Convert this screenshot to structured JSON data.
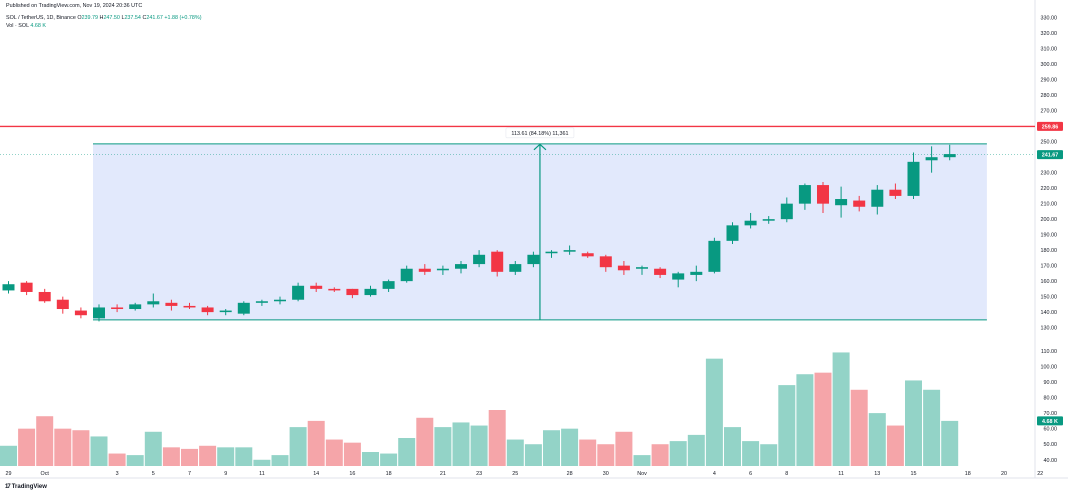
{
  "published": "Published on TradingView.com, Nov 19, 2024 20:36 UTC",
  "legend": {
    "symbol": "SOL / TetherUS, 1D, Binance",
    "o_label": "O",
    "o_value": "239.79",
    "h_label": "H",
    "h_value": "247.50",
    "l_label": "L",
    "l_value": "237.54",
    "c_label": "C",
    "c_value": "241.67",
    "change": "+1.88 (+0.78%)",
    "vol_label": "Vol · SOL",
    "vol_value": "4.68 K"
  },
  "brand": {
    "logo": "17",
    "name": "TradingView"
  },
  "colors": {
    "up": "#089981",
    "down": "#f23645",
    "vol_up": "#93d3c7",
    "vol_down": "#f5a5a9",
    "range_fill": "#dde5fb",
    "range_line": "#089981",
    "hline": "#f23645"
  },
  "chart_data": {
    "type": "candlestick",
    "title": "SOL / TetherUS, 1D, Binance",
    "price_axis": {
      "ticks": [
        130,
        140,
        150,
        160,
        170,
        180,
        190,
        200,
        210,
        220,
        230,
        240,
        250,
        260,
        270,
        280,
        290,
        300,
        310,
        320,
        330
      ],
      "range": [
        122,
        335
      ]
    },
    "volume_axis": {
      "ticks": [
        40,
        50,
        60,
        70,
        80,
        90,
        100,
        110
      ],
      "range": [
        36,
        117
      ]
    },
    "x_ticks": [
      {
        "i": 0,
        "label": "29"
      },
      {
        "i": 2,
        "label": "Oct"
      },
      {
        "i": 6,
        "label": "3"
      },
      {
        "i": 8,
        "label": "5"
      },
      {
        "i": 10,
        "label": "7"
      },
      {
        "i": 12,
        "label": "9"
      },
      {
        "i": 14,
        "label": "11"
      },
      {
        "i": 17,
        "label": "14"
      },
      {
        "i": 19,
        "label": "16"
      },
      {
        "i": 21,
        "label": "18"
      },
      {
        "i": 24,
        "label": "21"
      },
      {
        "i": 26,
        "label": "23"
      },
      {
        "i": 28,
        "label": "25"
      },
      {
        "i": 31,
        "label": "28"
      },
      {
        "i": 33,
        "label": "30"
      },
      {
        "i": 35,
        "label": "Nov"
      },
      {
        "i": 39,
        "label": "4"
      },
      {
        "i": 41,
        "label": "6"
      },
      {
        "i": 43,
        "label": "8"
      },
      {
        "i": 46,
        "label": "11"
      },
      {
        "i": 48,
        "label": "13"
      },
      {
        "i": 50,
        "label": "15"
      },
      {
        "i": 53,
        "label": "18"
      },
      {
        "i": 55,
        "label": "20"
      },
      {
        "i": 57,
        "label": "22"
      }
    ],
    "candles": [
      {
        "o": 154,
        "h": 160,
        "l": 152,
        "c": 158,
        "v": 49
      },
      {
        "o": 159,
        "h": 160,
        "l": 151,
        "c": 153,
        "v": 60
      },
      {
        "o": 153,
        "h": 155,
        "l": 146,
        "c": 147,
        "v": 68
      },
      {
        "o": 148,
        "h": 150,
        "l": 139,
        "c": 142,
        "v": 60
      },
      {
        "o": 141,
        "h": 143,
        "l": 136,
        "c": 138,
        "v": 59
      },
      {
        "o": 136,
        "h": 145,
        "l": 134,
        "c": 143,
        "v": 55
      },
      {
        "o": 143,
        "h": 145,
        "l": 140,
        "c": 142,
        "v": 44
      },
      {
        "o": 142,
        "h": 146,
        "l": 141,
        "c": 145,
        "v": 43
      },
      {
        "o": 145,
        "h": 152,
        "l": 143,
        "c": 147,
        "v": 58
      },
      {
        "o": 146,
        "h": 148,
        "l": 141,
        "c": 144,
        "v": 48
      },
      {
        "o": 144,
        "h": 146,
        "l": 142,
        "c": 143,
        "v": 47
      },
      {
        "o": 143,
        "h": 144,
        "l": 138,
        "c": 140,
        "v": 49
      },
      {
        "o": 140,
        "h": 142,
        "l": 138,
        "c": 141,
        "v": 48
      },
      {
        "o": 139,
        "h": 147,
        "l": 138,
        "c": 146,
        "v": 48
      },
      {
        "o": 146,
        "h": 148,
        "l": 144,
        "c": 147,
        "v": 40
      },
      {
        "o": 147,
        "h": 150,
        "l": 145,
        "c": 148,
        "v": 43
      },
      {
        "o": 148,
        "h": 159,
        "l": 147,
        "c": 157,
        "v": 61
      },
      {
        "o": 157,
        "h": 159,
        "l": 153,
        "c": 155,
        "v": 65
      },
      {
        "o": 155,
        "h": 156,
        "l": 153,
        "c": 154,
        "v": 53
      },
      {
        "o": 155,
        "h": 155,
        "l": 149,
        "c": 151,
        "v": 51
      },
      {
        "o": 151,
        "h": 157,
        "l": 150,
        "c": 155,
        "v": 45
      },
      {
        "o": 155,
        "h": 161,
        "l": 153,
        "c": 160,
        "v": 44
      },
      {
        "o": 160,
        "h": 170,
        "l": 159,
        "c": 168,
        "v": 54
      },
      {
        "o": 168,
        "h": 171,
        "l": 164,
        "c": 166,
        "v": 67
      },
      {
        "o": 167,
        "h": 170,
        "l": 164,
        "c": 168,
        "v": 61
      },
      {
        "o": 168,
        "h": 173,
        "l": 165,
        "c": 171,
        "v": 64
      },
      {
        "o": 171,
        "h": 180,
        "l": 169,
        "c": 177,
        "v": 62
      },
      {
        "o": 179,
        "h": 180,
        "l": 163,
        "c": 166,
        "v": 72
      },
      {
        "o": 166,
        "h": 173,
        "l": 164,
        "c": 171,
        "v": 53
      },
      {
        "o": 171,
        "h": 179,
        "l": 169,
        "c": 177,
        "v": 50
      },
      {
        "o": 178,
        "h": 180,
        "l": 175,
        "c": 179,
        "v": 59
      },
      {
        "o": 179,
        "h": 183,
        "l": 177,
        "c": 180,
        "v": 60
      },
      {
        "o": 178,
        "h": 179,
        "l": 175,
        "c": 176,
        "v": 53
      },
      {
        "o": 176,
        "h": 177,
        "l": 166,
        "c": 169,
        "v": 50
      },
      {
        "o": 170,
        "h": 173,
        "l": 164,
        "c": 167,
        "v": 58
      },
      {
        "o": 168,
        "h": 170,
        "l": 164,
        "c": 169,
        "v": 43
      },
      {
        "o": 168,
        "h": 169,
        "l": 162,
        "c": 164,
        "v": 50
      },
      {
        "o": 161,
        "h": 166,
        "l": 156,
        "c": 165,
        "v": 52
      },
      {
        "o": 164,
        "h": 170,
        "l": 160,
        "c": 166,
        "v": 56
      },
      {
        "o": 166,
        "h": 188,
        "l": 165,
        "c": 186,
        "v": 105
      },
      {
        "o": 186,
        "h": 198,
        "l": 184,
        "c": 196,
        "v": 61
      },
      {
        "o": 196,
        "h": 204,
        "l": 194,
        "c": 199,
        "v": 52
      },
      {
        "o": 199,
        "h": 202,
        "l": 197,
        "c": 200,
        "v": 50
      },
      {
        "o": 200,
        "h": 214,
        "l": 198,
        "c": 210,
        "v": 88
      },
      {
        "o": 210,
        "h": 223,
        "l": 206,
        "c": 222,
        "v": 95
      },
      {
        "o": 222,
        "h": 224,
        "l": 204,
        "c": 210,
        "v": 96
      },
      {
        "o": 209,
        "h": 221,
        "l": 201,
        "c": 213,
        "v": 109
      },
      {
        "o": 212,
        "h": 215,
        "l": 205,
        "c": 208,
        "v": 85
      },
      {
        "o": 208,
        "h": 222,
        "l": 203,
        "c": 219,
        "v": 70
      },
      {
        "o": 219,
        "h": 223,
        "l": 213,
        "c": 215,
        "v": 62
      },
      {
        "o": 215,
        "h": 243,
        "l": 213,
        "c": 237,
        "v": 91
      },
      {
        "o": 238,
        "h": 247,
        "l": 230,
        "c": 240,
        "v": 85
      },
      {
        "o": 240,
        "h": 248,
        "l": 238,
        "c": 242,
        "v": 65
      }
    ],
    "range_measure": {
      "label": "113.61 (84.18%) 11,361",
      "from_index": 5,
      "to_index": 54,
      "low": 134.97,
      "high": 248.6
    },
    "horizontal_line": {
      "price": 259.86,
      "label": "259.86"
    },
    "last_price": {
      "value": 241.67,
      "label": "241.67"
    },
    "last_volume": {
      "label": "4.68 K"
    }
  }
}
